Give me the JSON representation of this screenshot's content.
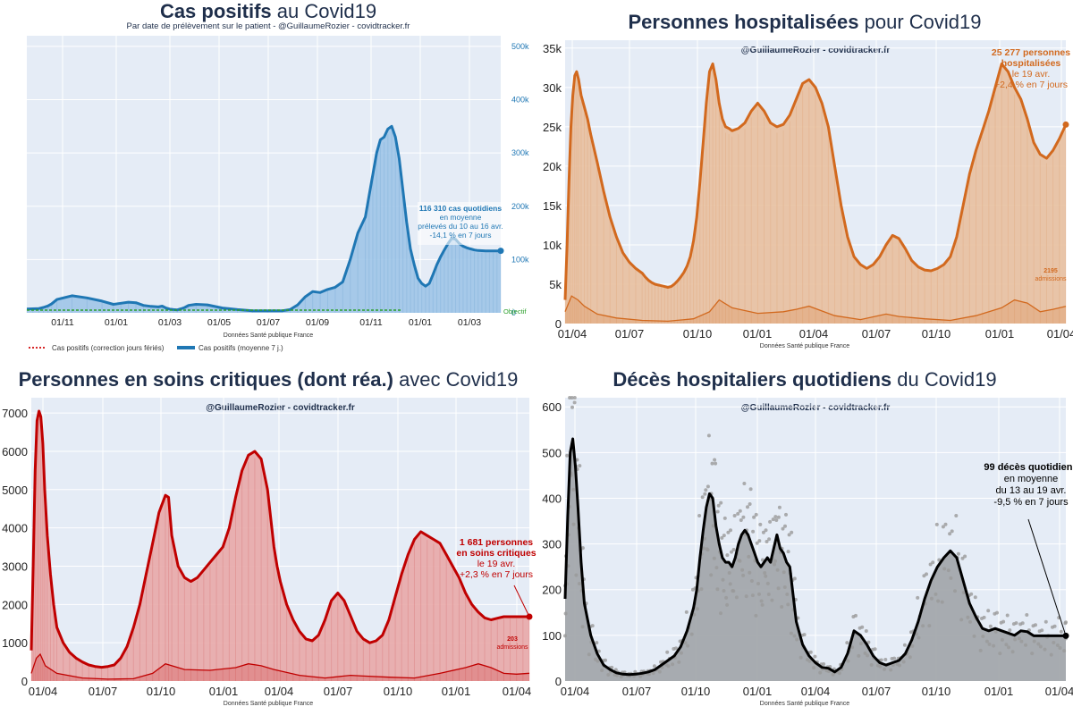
{
  "colors": {
    "plot_bg": "#e5ecf6",
    "grid": "#ffffff",
    "title": "#1f2f4b",
    "cases": "#1f77b4",
    "cases_fill": "#9fc5e8",
    "hosp": "#d2691e",
    "hosp_fill": "#e8c0a0",
    "icu": "#c00000",
    "icu_fill": "#e8a8a8",
    "deaths": "#000000",
    "deaths_fill": "#a0a4a8",
    "dots": "#9a9a9a",
    "objective": "#2ca02c",
    "correction": "#d62728"
  },
  "chart_data": [
    {
      "id": "cases",
      "type": "area",
      "title_bold": "Cas positifs",
      "title_rest": " au Covid19",
      "subtitle": "Par date de prélèvement sur le patient - @GuillaumeRozier - covidtracker.fr",
      "source": "Données Santé publique France",
      "x_ticks": [
        "01/11",
        "01/01",
        "01/03",
        "01/05",
        "01/07",
        "01/09",
        "01/11",
        "01/01",
        "01/03"
      ],
      "y_ticks": [
        "0",
        "100k",
        "200k",
        "300k",
        "400k",
        "500k"
      ],
      "y_axis_side": "right",
      "ylim": [
        0,
        520000
      ],
      "objective_label": "Objectif",
      "legend": [
        "Cas positifs (correction jours fériés)",
        "Cas positifs (moyenne 7 j.)"
      ],
      "annotation": [
        "116 310 cas quotidiens",
        "en moyenne",
        "prélevés du 10 au 16 avr.",
        "-14,1 % en 7 jours"
      ],
      "series": [
        {
          "name": "Cas positifs (moyenne 7 j.)",
          "x": [
            0,
            8,
            16,
            22,
            28,
            33,
            40,
            60,
            80,
            100,
            115,
            125,
            135,
            145,
            155,
            165,
            175,
            180,
            185,
            190,
            195,
            200,
            205,
            210,
            215,
            225,
            240,
            260,
            280,
            300,
            320,
            340,
            350,
            360,
            370,
            380,
            390,
            400,
            410,
            420,
            430,
            440,
            450,
            455,
            460,
            465,
            470,
            475,
            480,
            485,
            490,
            495,
            500,
            505,
            510,
            515,
            520,
            525,
            530,
            535,
            540,
            545,
            550,
            555,
            560,
            565,
            570,
            575,
            580,
            585,
            590,
            595,
            600,
            605,
            610,
            615,
            620,
            625,
            630
          ],
          "values": [
            7000,
            7500,
            8000,
            10000,
            13000,
            17000,
            25000,
            32000,
            28000,
            22000,
            16000,
            18000,
            20000,
            19000,
            14000,
            12000,
            11000,
            12500,
            9000,
            7000,
            6000,
            5500,
            7500,
            10000,
            14000,
            16000,
            15000,
            9000,
            6000,
            3800,
            3700,
            3900,
            6000,
            15000,
            30000,
            40000,
            38000,
            44000,
            48000,
            58000,
            100000,
            150000,
            180000,
            220000,
            260000,
            300000,
            325000,
            330000,
            345000,
            350000,
            330000,
            290000,
            230000,
            170000,
            120000,
            90000,
            65000,
            55000,
            50000,
            55000,
            72000,
            90000,
            105000,
            118000,
            130000,
            140000,
            138000,
            130000,
            125000,
            122000,
            120000,
            118000,
            117000,
            116500,
            116310,
            116310,
            116310,
            116310,
            116310
          ]
        }
      ]
    },
    {
      "id": "hosp",
      "type": "area",
      "title_bold": "Personnes hospitalisées",
      "title_rest": " pour Covid19",
      "subtitle": "@GuillaumeRozier - covidtracker.fr",
      "source": "Données Santé publique France",
      "x_ticks": [
        "01/04",
        "01/07",
        "01/10",
        "01/01",
        "01/04",
        "01/07",
        "01/10",
        "01/01",
        "01/04"
      ],
      "y_ticks": [
        "0",
        "5k",
        "10k",
        "15k",
        "20k",
        "25k",
        "30k",
        "35k"
      ],
      "ylim": [
        0,
        36000
      ],
      "annotation_bold": [
        "25 277 personnes",
        "hospitalisées"
      ],
      "annotation": [
        "le 19 avr.",
        "+2,4 % en 7 jours"
      ],
      "admissions_label": [
        "2195",
        "admissions"
      ],
      "series": [
        {
          "name": "hospitalisés",
          "x": [
            0,
            3,
            6,
            9,
            12,
            15,
            18,
            21,
            25,
            30,
            35,
            40,
            50,
            60,
            70,
            80,
            90,
            100,
            110,
            120,
            125,
            130,
            135,
            140,
            145,
            150,
            155,
            160,
            165,
            170,
            175,
            180,
            185,
            190,
            195,
            200,
            205,
            210,
            215,
            220,
            225,
            230,
            235,
            240,
            245,
            250,
            255,
            260,
            270,
            280,
            290,
            300,
            310,
            320,
            330,
            340,
            350,
            360,
            370,
            380,
            390,
            400,
            410,
            420,
            430,
            440,
            450,
            460,
            470,
            480,
            490,
            500,
            510,
            520,
            530,
            540,
            550,
            560,
            570,
            580,
            590,
            600,
            610,
            620,
            630,
            640,
            650,
            660,
            670,
            680,
            690,
            700,
            710,
            720,
            730,
            740,
            750,
            760,
            770,
            780
          ],
          "values": [
            3000,
            10000,
            18000,
            25000,
            29000,
            31500,
            32000,
            31000,
            29000,
            27500,
            26000,
            24000,
            20500,
            16800,
            13500,
            11000,
            9000,
            7800,
            7000,
            6400,
            5900,
            5500,
            5200,
            5000,
            4900,
            4800,
            4700,
            4600,
            4700,
            5000,
            5400,
            5900,
            6500,
            7300,
            8500,
            10500,
            13500,
            18000,
            23000,
            28000,
            32000,
            33000,
            31000,
            28000,
            26000,
            25000,
            24800,
            24500,
            24800,
            25500,
            27000,
            28000,
            27000,
            25500,
            25000,
            25300,
            26500,
            28500,
            30500,
            31000,
            30000,
            28000,
            25000,
            20000,
            15000,
            11000,
            8500,
            7500,
            7000,
            7500,
            8500,
            10000,
            11200,
            10800,
            9500,
            8000,
            7200,
            6800,
            6700,
            7000,
            7500,
            8500,
            11000,
            15000,
            19000,
            22000,
            24500,
            27000,
            30000,
            33000,
            32000,
            30000,
            28500,
            26000,
            23000,
            21500,
            21000,
            22000,
            23500,
            25277
          ]
        },
        {
          "name": "admissions",
          "x": [
            0,
            10,
            20,
            30,
            50,
            80,
            120,
            160,
            200,
            225,
            240,
            260,
            300,
            340,
            360,
            380,
            420,
            460,
            500,
            520,
            560,
            600,
            640,
            680,
            700,
            720,
            740,
            760,
            780
          ],
          "values": [
            1500,
            3500,
            3000,
            2200,
            1200,
            700,
            400,
            300,
            600,
            1500,
            3000,
            2000,
            1300,
            1500,
            1800,
            2200,
            1000,
            500,
            1200,
            900,
            600,
            400,
            1000,
            2000,
            3000,
            2600,
            1500,
            1800,
            2195
          ]
        }
      ]
    },
    {
      "id": "icu",
      "type": "area",
      "title_bold": "Personnes en soins critiques (dont réa.)",
      "title_rest": " avec Covid19",
      "subtitle": "@GuillaumeRozier - covidtracker.fr",
      "source": "Données Santé publique France",
      "x_ticks": [
        "01/04",
        "01/07",
        "01/10",
        "01/01",
        "01/04",
        "01/07",
        "01/10",
        "01/01",
        "01/04"
      ],
      "y_ticks": [
        "0",
        "1000",
        "2000",
        "3000",
        "4000",
        "5000",
        "6000",
        "7000"
      ],
      "ylim": [
        0,
        7400
      ],
      "annotation_bold": [
        "1 681 personnes",
        "en soins critiques"
      ],
      "annotation": [
        "le 19 avr.",
        "+2,3 % en 7 jours"
      ],
      "admissions_label": [
        "203",
        "admissions"
      ],
      "series": [
        {
          "name": "soins critiques",
          "x": [
            0,
            3,
            6,
            9,
            12,
            15,
            18,
            21,
            25,
            30,
            35,
            40,
            50,
            60,
            70,
            80,
            90,
            100,
            110,
            120,
            130,
            140,
            150,
            160,
            170,
            180,
            190,
            200,
            210,
            215,
            220,
            230,
            240,
            250,
            260,
            270,
            280,
            290,
            300,
            310,
            320,
            330,
            340,
            350,
            360,
            370,
            380,
            385,
            390,
            400,
            410,
            420,
            430,
            440,
            450,
            460,
            470,
            480,
            490,
            500,
            510,
            520,
            530,
            540,
            550,
            560,
            570,
            580,
            590,
            600,
            610,
            620,
            630,
            640,
            650,
            660,
            670,
            680,
            690,
            700,
            710,
            720,
            730,
            740,
            750,
            760,
            770,
            780
          ],
          "values": [
            800,
            3000,
            5500,
            6800,
            7050,
            6900,
            6200,
            5000,
            3800,
            2800,
            2000,
            1400,
            1000,
            750,
            600,
            500,
            420,
            380,
            360,
            380,
            420,
            600,
            900,
            1400,
            2000,
            2800,
            3600,
            4400,
            4850,
            4800,
            3800,
            3000,
            2700,
            2600,
            2700,
            2900,
            3100,
            3300,
            3500,
            4000,
            4800,
            5500,
            5900,
            6000,
            5800,
            5000,
            3500,
            3000,
            2600,
            2000,
            1600,
            1300,
            1100,
            1050,
            1200,
            1600,
            2100,
            2300,
            2100,
            1700,
            1300,
            1100,
            1000,
            1050,
            1200,
            1600,
            2200,
            2800,
            3300,
            3700,
            3900,
            3800,
            3700,
            3600,
            3300,
            3000,
            2700,
            2300,
            2000,
            1800,
            1650,
            1600,
            1640,
            1681,
            1681,
            1681,
            1681,
            1681
          ]
        },
        {
          "name": "admissions",
          "x": [
            0,
            8,
            14,
            22,
            40,
            80,
            120,
            160,
            190,
            210,
            240,
            280,
            320,
            340,
            360,
            380,
            420,
            460,
            500,
            520,
            560,
            600,
            640,
            680,
            700,
            720,
            740,
            760,
            780
          ],
          "values": [
            200,
            600,
            700,
            400,
            200,
            80,
            50,
            60,
            200,
            450,
            300,
            280,
            350,
            450,
            400,
            300,
            150,
            80,
            150,
            130,
            100,
            80,
            200,
            350,
            450,
            350,
            200,
            180,
            203
          ]
        }
      ]
    },
    {
      "id": "deaths",
      "type": "line",
      "title_bold": "Décès hospitaliers quotidiens",
      "title_rest": " du Covid19",
      "subtitle": "@GuillaumeRozier - covidtracker.fr",
      "source": "Données Santé publique France",
      "x_ticks": [
        "01/04",
        "01/07",
        "01/10",
        "01/01",
        "01/04",
        "01/07",
        "01/10",
        "01/01",
        "01/04"
      ],
      "y_ticks": [
        "0",
        "100",
        "200",
        "300",
        "400",
        "500",
        "600"
      ],
      "ylim": [
        0,
        620
      ],
      "annotation_bold": [
        "99 décès quotidiens"
      ],
      "annotation": [
        "en moyenne",
        "du 13 au 19 avr.",
        "-9,5 % en 7 jours"
      ],
      "series": [
        {
          "name": "décès (moyenne 7 j.)",
          "x": [
            0,
            4,
            8,
            12,
            16,
            20,
            25,
            30,
            40,
            50,
            60,
            70,
            80,
            90,
            100,
            110,
            120,
            130,
            140,
            150,
            160,
            170,
            180,
            190,
            200,
            205,
            210,
            215,
            220,
            225,
            230,
            235,
            240,
            245,
            250,
            255,
            260,
            265,
            270,
            275,
            280,
            285,
            290,
            295,
            300,
            305,
            310,
            315,
            320,
            325,
            330,
            335,
            340,
            345,
            350,
            355,
            360,
            370,
            380,
            390,
            400,
            410,
            420,
            430,
            440,
            450,
            460,
            470,
            480,
            490,
            500,
            510,
            520,
            530,
            540,
            550,
            560,
            570,
            580,
            590,
            600,
            610,
            620,
            630,
            640,
            650,
            660,
            670,
            680,
            690,
            700,
            710,
            720,
            730,
            740,
            750,
            760,
            770,
            780
          ],
          "values": [
            180,
            360,
            500,
            530,
            470,
            380,
            260,
            170,
            100,
            60,
            35,
            25,
            18,
            15,
            14,
            15,
            17,
            20,
            25,
            35,
            45,
            55,
            75,
            110,
            160,
            200,
            270,
            330,
            380,
            410,
            400,
            340,
            300,
            270,
            260,
            260,
            250,
            270,
            300,
            320,
            330,
            320,
            300,
            280,
            260,
            250,
            260,
            270,
            260,
            290,
            320,
            290,
            280,
            260,
            250,
            190,
            130,
            80,
            55,
            40,
            30,
            28,
            20,
            30,
            60,
            110,
            100,
            80,
            55,
            40,
            35,
            40,
            45,
            60,
            90,
            130,
            180,
            220,
            250,
            270,
            285,
            270,
            220,
            170,
            140,
            115,
            110,
            115,
            110,
            105,
            100,
            110,
            108,
            99,
            99,
            99,
            99,
            99,
            99
          ]
        }
      ]
    }
  ]
}
